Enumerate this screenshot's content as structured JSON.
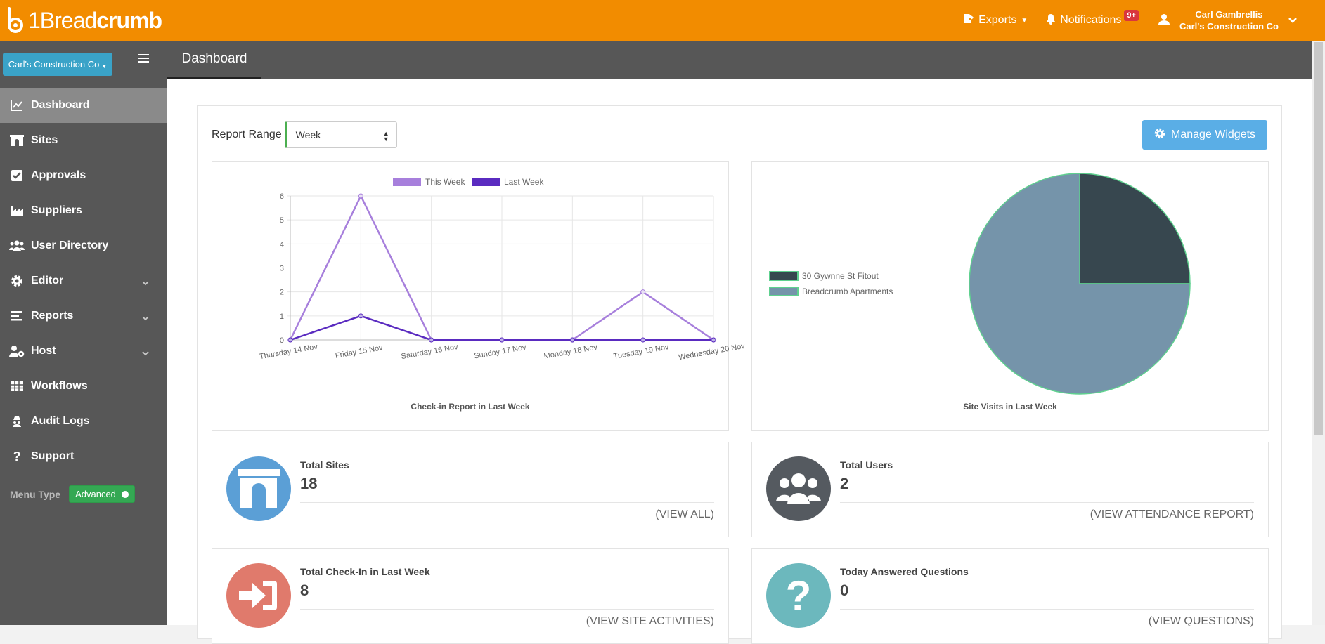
{
  "app": {
    "logo_prefix": "1",
    "logo_light": "Bread",
    "logo_bold": "crumb"
  },
  "topnav": {
    "exports": "Exports",
    "notifications": "Notifications",
    "notifications_badge": "9+",
    "user_name": "Carl Gambrellis",
    "user_company": "Carl's Construction Co"
  },
  "sidebar": {
    "company_button": "Carl's Construction Co",
    "items": [
      {
        "label": "Dashboard",
        "icon": "chart-line-icon"
      },
      {
        "label": "Sites",
        "icon": "archway-icon"
      },
      {
        "label": "Approvals",
        "icon": "check-square-icon"
      },
      {
        "label": "Suppliers",
        "icon": "industry-icon"
      },
      {
        "label": "User Directory",
        "icon": "users-icon"
      },
      {
        "label": "Editor",
        "icon": "gear-icon"
      },
      {
        "label": "Reports",
        "icon": "list-icon"
      },
      {
        "label": "Host",
        "icon": "user-cog-icon"
      },
      {
        "label": "Workflows",
        "icon": "table-icon"
      },
      {
        "label": "Audit Logs",
        "icon": "user-secret-icon"
      },
      {
        "label": "Support",
        "icon": "question-icon"
      }
    ],
    "menu_type_label": "Menu Type",
    "menu_type_value": "Advanced"
  },
  "header": {
    "tab": "Dashboard"
  },
  "dashboard": {
    "report_range_label": "Report Range",
    "report_range_value": "Week",
    "manage_widgets": "Manage Widgets"
  },
  "chart_data": [
    {
      "type": "line",
      "title": "Check-in Report in Last Week",
      "categories": [
        "Thursday 14 Nov",
        "Friday 15 Nov",
        "Saturday 16 Nov",
        "Sunday 17 Nov",
        "Monday 18 Nov",
        "Tuesday 19 Nov",
        "Wednesday 20 Nov"
      ],
      "series": [
        {
          "name": "This Week",
          "values": [
            0,
            6,
            0,
            0,
            0,
            2,
            0
          ],
          "color": "#a77fdc"
        },
        {
          "name": "Last Week",
          "values": [
            0,
            1,
            0,
            0,
            0,
            0,
            0
          ],
          "color": "#5a2bc0"
        }
      ],
      "ylim": [
        0,
        6
      ],
      "yticks": [
        "0",
        "1",
        "2",
        "3",
        "4",
        "5",
        "6"
      ],
      "grid": true,
      "legend": "top"
    },
    {
      "type": "pie",
      "title": "Site Visits in Last Week",
      "labels": [
        "30 Gywnne St Fitout",
        "Breadcrumb Apartments"
      ],
      "values": [
        1,
        3
      ],
      "colors": [
        "#37474f",
        "#7594aa"
      ],
      "legend": "left"
    }
  ],
  "stats": {
    "total_sites": {
      "title": "Total Sites",
      "value": "18",
      "link": "(VIEW ALL)"
    },
    "total_users": {
      "title": "Total Users",
      "value": "2",
      "link": "(VIEW ATTENDANCE REPORT)"
    },
    "total_checkin": {
      "title": "Total Check-In in Last Week",
      "value": "8",
      "link": "(VIEW SITE ACTIVITIES)"
    },
    "answered_questions": {
      "title": "Today Answered Questions",
      "value": "0",
      "link": "(VIEW QUESTIONS)"
    }
  },
  "colors": {
    "topbar": "#f28c00",
    "sidebar": "#575757",
    "accent_blue": "#5aaee6",
    "sites_icon": "#5b9fd6",
    "users_icon": "#555a60",
    "checkin_icon": "#e07a6c",
    "questions_icon": "#6cb8bd"
  }
}
